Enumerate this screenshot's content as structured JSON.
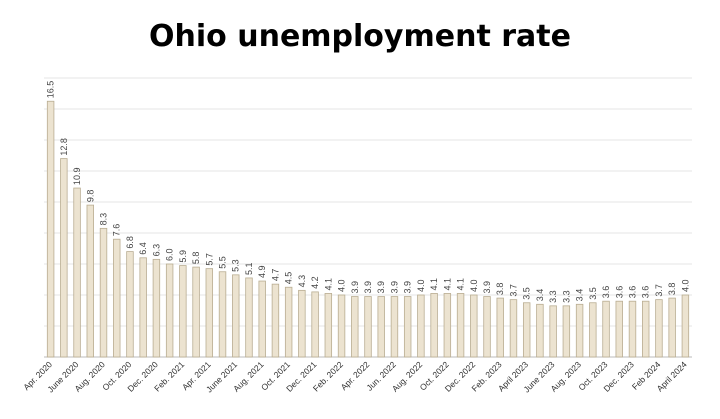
{
  "chart_data": {
    "type": "bar",
    "title": "Ohio unemployment rate",
    "categories": [
      "Apr. 2020",
      null,
      "June 2020",
      null,
      "Aug. 2020",
      null,
      "Oct. 2020",
      null,
      "Dec. 2020",
      null,
      "Feb. 2021",
      null,
      "Apr. 2021",
      null,
      "June 2021",
      null,
      "Aug. 2021",
      null,
      "Oct. 2021",
      null,
      "Dec. 2021",
      null,
      "Feb. 2022",
      null,
      "Apr. 2022",
      null,
      "Jun. 2022",
      null,
      "Aug. 2022",
      null,
      "Oct. 2022",
      null,
      "Dec. 2022",
      null,
      "Feb. 2023",
      null,
      "April 2023",
      null,
      "June 2023",
      null,
      "Aug. 2023",
      null,
      "Oct. 2023",
      null,
      "Dec. 2023",
      null,
      "Feb 2024",
      null,
      "April 2024"
    ],
    "values": [
      16.5,
      12.8,
      10.9,
      9.8,
      8.3,
      7.6,
      6.8,
      6.4,
      6.3,
      6.0,
      5.9,
      5.8,
      5.7,
      5.5,
      5.3,
      5.1,
      4.9,
      4.7,
      4.5,
      4.3,
      4.2,
      4.1,
      4.0,
      3.9,
      3.9,
      3.9,
      3.9,
      3.9,
      4.0,
      4.1,
      4.1,
      4.1,
      4.0,
      3.9,
      3.8,
      3.7,
      3.5,
      3.4,
      3.3,
      3.3,
      3.4,
      3.5,
      3.6,
      3.6,
      3.6,
      3.6,
      3.7,
      3.8,
      4.0
    ],
    "value_labels": [
      "16.5",
      "12.8",
      "10.9",
      "9.8",
      "8.3",
      "7.6",
      "6.8",
      "6.4",
      "6.3",
      "6.0",
      "5.9",
      "5.8",
      "5.7",
      "5.5",
      "5.3",
      "5.1",
      "4.9",
      "4.7",
      "4.5",
      "4.3",
      "4.2",
      "4.1",
      "4.0",
      "3.9",
      "3.9",
      "3.9",
      "3.9",
      "3.9",
      "4.0",
      "4.1",
      "4.1",
      "4.1",
      "4.0",
      "3.9",
      "3.8",
      "3.7",
      "3.5",
      "3.4",
      "3.3",
      "3.3",
      "3.4",
      "3.5",
      "3.6",
      "3.6",
      "3.6",
      "3.6",
      "3.7",
      "3.8",
      "4.0"
    ],
    "color": "#ece3d0",
    "ylim": [
      0,
      18
    ],
    "yticks": [
      0,
      2,
      4,
      6,
      8,
      10,
      12,
      14,
      16,
      18
    ],
    "ytick_labels": false,
    "grid": true
  }
}
